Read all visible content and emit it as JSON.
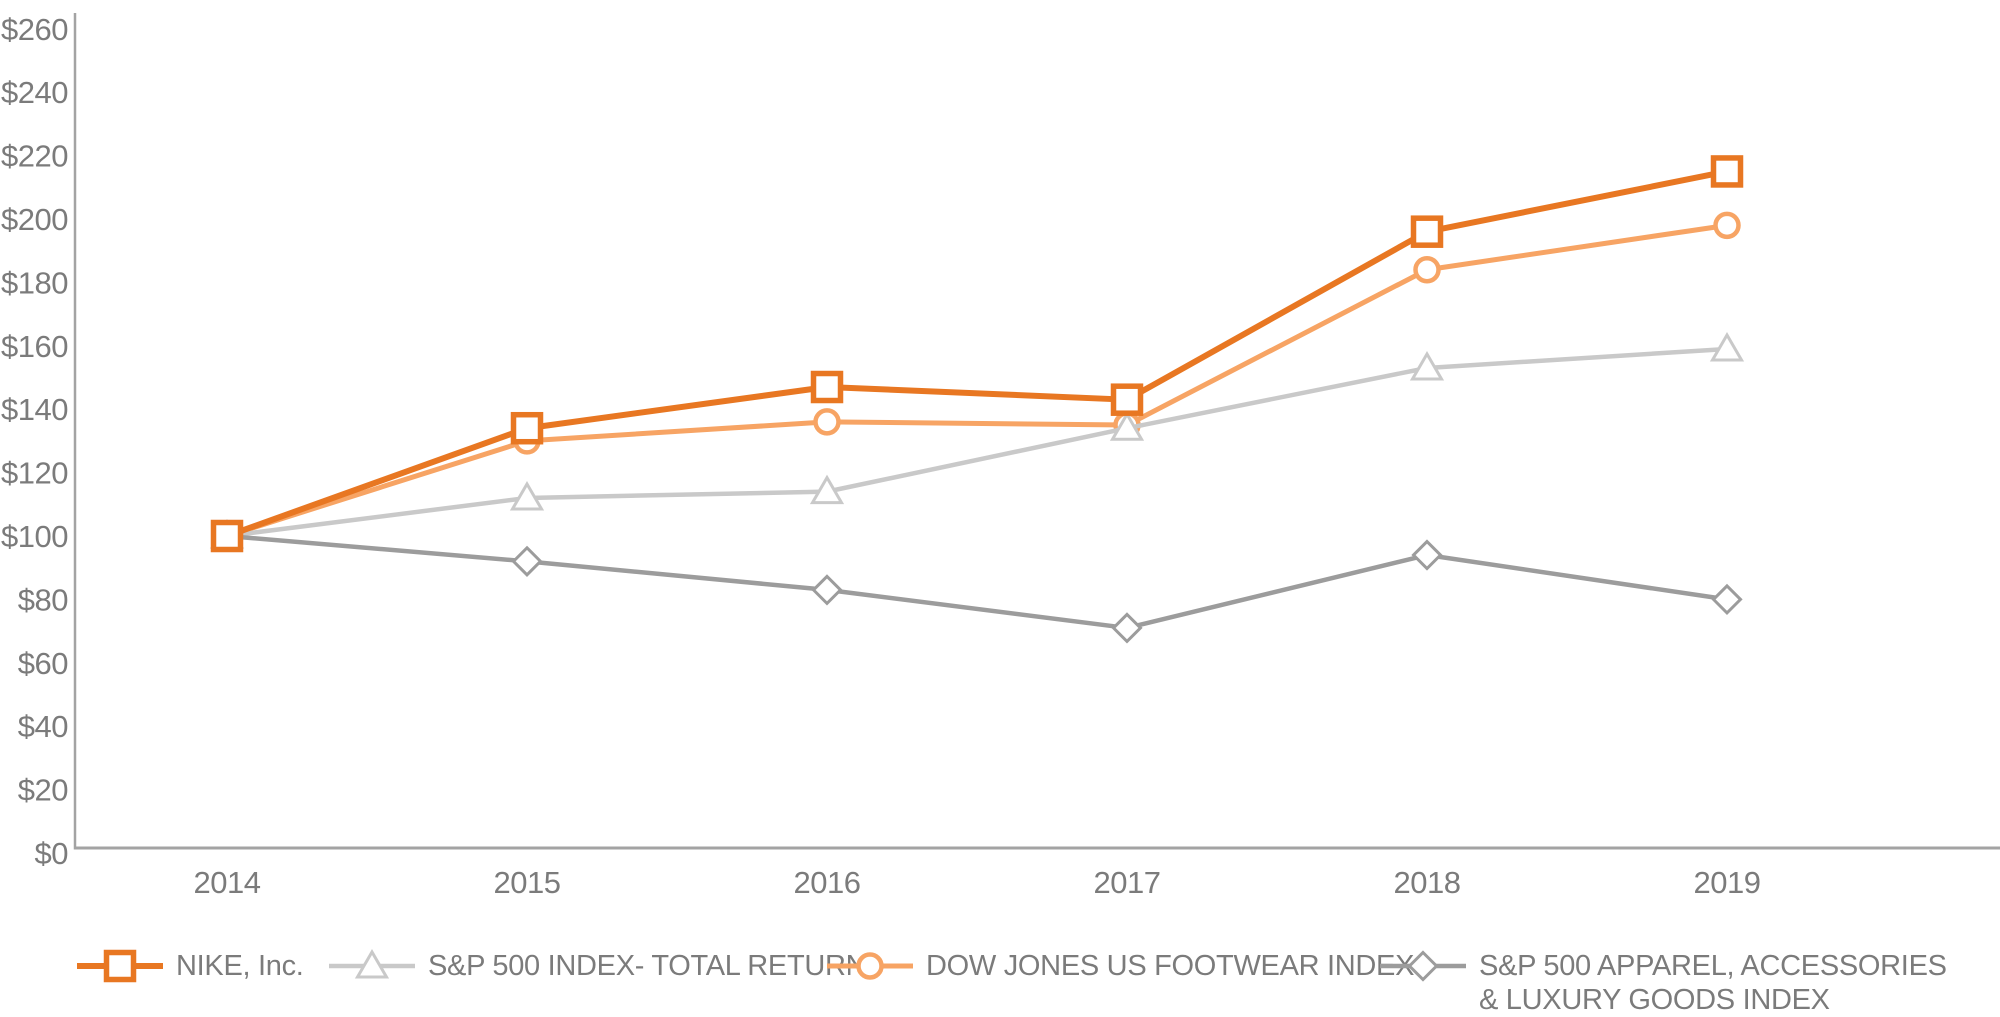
{
  "chart_data": {
    "type": "line",
    "title": "",
    "xlabel": "",
    "ylabel": "",
    "x_labels": [
      "2014",
      "2015",
      "2016",
      "2017",
      "2018",
      "2019"
    ],
    "y_axis": {
      "min": 0,
      "max": 260,
      "step": 20,
      "prefix": "$",
      "tick_labels": [
        "$0",
        "$20",
        "$40",
        "$60",
        "$80",
        "$100",
        "$120",
        "$140",
        "$160",
        "$180",
        "$200",
        "$220",
        "$240",
        "$260"
      ]
    },
    "grid": false,
    "legend_position": "bottom",
    "series": [
      {
        "name": "NIKE, Inc.",
        "marker": "square",
        "color": "#E87722",
        "line_width": 6,
        "values": [
          100,
          134,
          147,
          143,
          196,
          215
        ]
      },
      {
        "name": "S&P 500 INDEX- TOTAL RETURN",
        "marker": "triangle",
        "color": "#C9C9C9",
        "line_width": 4.5,
        "values": [
          100,
          112,
          114,
          134,
          153,
          159
        ]
      },
      {
        "name": "DOW JONES US FOOTWEAR INDEX",
        "marker": "circle",
        "color": "#F7A464",
        "line_width": 5,
        "values": [
          100,
          130,
          136,
          135,
          184,
          198
        ]
      },
      {
        "name": "S&P 500 APPAREL, ACCESSORIES & LUXURY GOODS INDEX",
        "marker": "diamond",
        "color": "#9C9C9C",
        "line_width": 4.5,
        "values": [
          100,
          92,
          83,
          71,
          94,
          80
        ]
      }
    ],
    "draw_order": [
      2,
      1,
      3,
      0
    ],
    "axis_color": "#A3A3A3",
    "tick_text_color": "#7B7B7B"
  },
  "legend": {
    "items": [
      {
        "label": "NIKE, Inc.",
        "series_index": 0
      },
      {
        "label": "S&P 500 INDEX- TOTAL RETURN",
        "series_index": 1
      },
      {
        "label": "DOW JONES US FOOTWEAR INDEX",
        "series_index": 2
      },
      {
        "label": "S&P 500 APPAREL, ACCESSORIES\n& LUXURY GOODS INDEX",
        "series_index": 3
      }
    ]
  }
}
